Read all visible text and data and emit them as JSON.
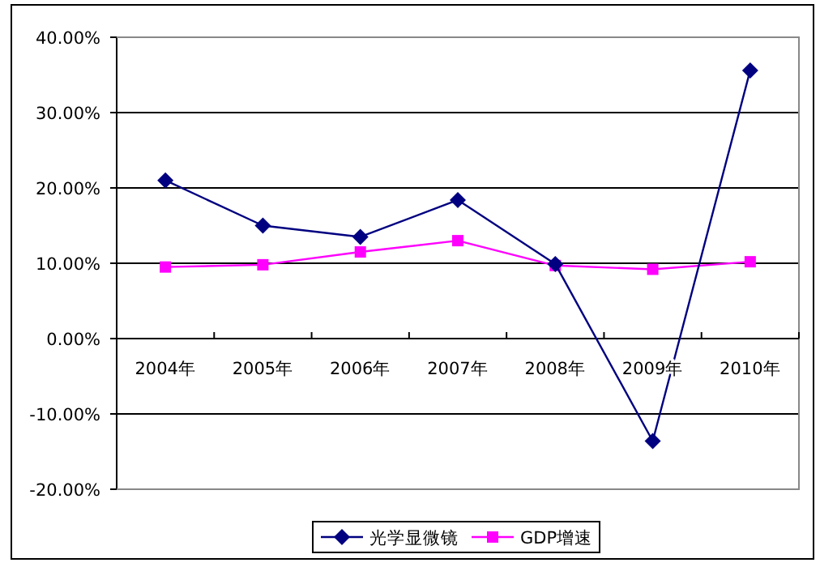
{
  "chart_data": {
    "type": "line",
    "categories": [
      "2004年",
      "2005年",
      "2006年",
      "2007年",
      "2008年",
      "2009年",
      "2010年"
    ],
    "series": [
      {
        "name": "光学显微镜",
        "color": "#000080",
        "marker": "diamond",
        "values": [
          21.0,
          15.0,
          13.5,
          18.4,
          9.9,
          -13.6,
          35.6
        ]
      },
      {
        "name": "GDP增速",
        "color": "#ff00ff",
        "marker": "square",
        "values": [
          9.5,
          9.8,
          11.5,
          13.0,
          9.7,
          9.2,
          10.2
        ]
      }
    ],
    "ylim": [
      -20,
      40
    ],
    "yticks": [
      {
        "value": -20,
        "label": "-20.00%"
      },
      {
        "value": -10,
        "label": "-10.00%"
      },
      {
        "value": 0,
        "label": "0.00%"
      },
      {
        "value": 10,
        "label": "10.00%"
      },
      {
        "value": 20,
        "label": "20.00%"
      },
      {
        "value": 30,
        "label": "30.00%"
      },
      {
        "value": 40,
        "label": "40.00%"
      }
    ],
    "grid": "y",
    "legend": "bottom"
  }
}
